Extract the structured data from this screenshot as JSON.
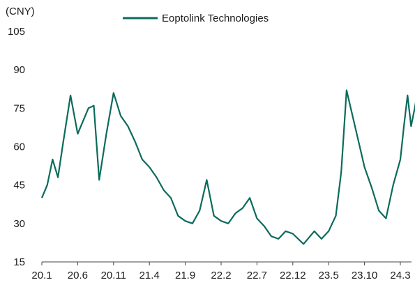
{
  "chart_data": {
    "type": "line",
    "title": "",
    "xlabel": "",
    "ylabel": "(CNY)",
    "ylim": [
      15,
      105
    ],
    "y_ticks": [
      15,
      30,
      45,
      60,
      75,
      90,
      105
    ],
    "x_tick_labels": [
      "20.1",
      "20.6",
      "20.11",
      "21.4",
      "21.9",
      "22.2",
      "22.7",
      "22.12",
      "23.5",
      "23.10",
      "24.3"
    ],
    "grid": false,
    "legend_position": "top-center",
    "series": [
      {
        "name": "Eoptolink Technologies",
        "color": "#0b6b5c",
        "x": [
          0,
          0.15,
          0.3,
          0.45,
          0.6,
          0.8,
          1.0,
          1.15,
          1.3,
          1.45,
          1.6,
          1.8,
          2.0,
          2.2,
          2.4,
          2.6,
          2.8,
          3.0,
          3.2,
          3.4,
          3.6,
          3.8,
          4.0,
          4.2,
          4.4,
          4.6,
          4.8,
          5.0,
          5.2,
          5.4,
          5.6,
          5.8,
          6.0,
          6.2,
          6.4,
          6.6,
          6.8,
          7.0,
          7.3,
          7.6,
          7.8,
          8.0,
          8.1,
          8.2,
          8.35,
          8.5,
          8.7,
          8.9,
          9.0,
          9.2,
          9.4,
          9.6,
          9.8,
          10.0,
          10.1,
          10.2,
          10.3,
          10.4,
          10.55
        ],
        "values": [
          40,
          45,
          55,
          48,
          62,
          80,
          65,
          70,
          75,
          76,
          47,
          65,
          81,
          72,
          68,
          62,
          55,
          52,
          48,
          43,
          40,
          33,
          31,
          30,
          35,
          47,
          33,
          31,
          30,
          34,
          36,
          40,
          32,
          29,
          25,
          24,
          27,
          26,
          22,
          27,
          24,
          27,
          30,
          33,
          50,
          82,
          70,
          58,
          52,
          44,
          35,
          32,
          45,
          55,
          68,
          80,
          68,
          75,
          87
        ]
      }
    ]
  }
}
